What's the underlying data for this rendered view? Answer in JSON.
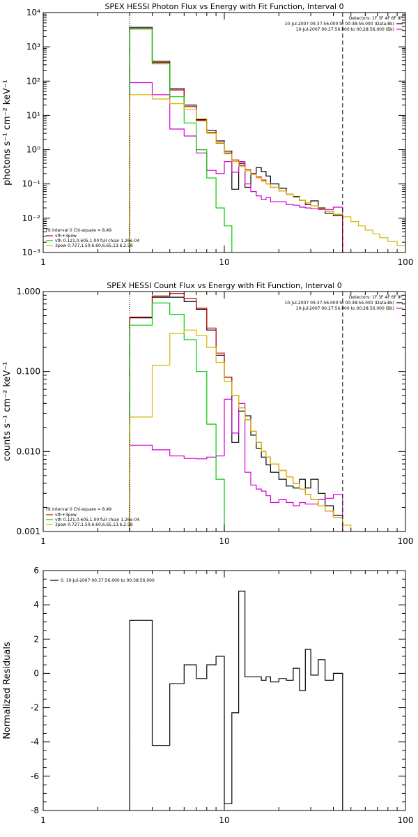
{
  "colors": {
    "black": "#000000",
    "red": "#cc0000",
    "green": "#00cc00",
    "yellow": "#d4b800",
    "magenta": "#d000d0"
  },
  "chart_data": [
    {
      "type": "line",
      "title": "SPEX HESSI Photon Flux vs Energy with Fit Function, Interval 0",
      "ylabel": "photons s⁻¹ cm⁻² keV⁻¹",
      "xlabel": "",
      "x_scale": "log",
      "y_scale": "log",
      "xlim": [
        1,
        100
      ],
      "ylim": [
        0.001,
        10000
      ],
      "x_ticks": [
        "1",
        "10",
        "100"
      ],
      "y_ticks": [
        "10⁻³",
        "10⁻²",
        "10⁻¹",
        "10⁰",
        "10¹",
        "10²",
        "10³",
        "10⁴"
      ],
      "vlines": [
        {
          "x": 3.0,
          "style": "dotted"
        },
        {
          "x": 45.0,
          "style": "dashed"
        }
      ],
      "detectors_text": "Detectors: 1F 3F 4F 6F 9F",
      "time_labels": [
        {
          "text": "10-Jul-2007 00:37:56.000 to 00:38:56.000 (Data-Bk)",
          "color": "#000000"
        },
        {
          "text": "10-Jul-2007 00:27:56.000 to 00:28:56.000 (Bk)",
          "color": "#d000d0"
        }
      ],
      "fit_header": "Fit Interval 0   Chi-square = 8.49",
      "fit_legend": [
        {
          "name": "vth+3pow",
          "color": "#cc0000"
        },
        {
          "name": "vth 0.121,0.605,1.00  full chian 1.26e-04",
          "color": "#00cc00"
        },
        {
          "name": "3pow 0.727,1.50,6.60,6.65,13.6,2.58",
          "color": "#d4b800"
        }
      ],
      "series": [
        {
          "name": "Data-Bk",
          "color": "#000000",
          "edges": [
            3,
            4,
            5,
            6,
            7,
            8,
            9,
            10,
            11,
            12,
            13,
            14,
            15,
            16,
            17,
            18,
            20,
            22,
            24,
            26,
            28,
            30,
            33,
            36,
            40,
            45
          ],
          "values": [
            3700,
            380,
            60,
            20,
            7.5,
            3.6,
            1.8,
            0.9,
            0.07,
            0.4,
            0.08,
            0.2,
            0.3,
            0.23,
            0.17,
            0.1,
            0.075,
            0.05,
            0.043,
            0.033,
            0.025,
            0.032,
            0.02,
            0.014,
            0.012
          ]
        },
        {
          "name": "Bk",
          "color": "#d000d0",
          "edges": [
            3,
            4,
            5,
            6,
            7,
            8,
            9,
            10,
            11,
            12,
            13,
            14,
            15,
            16,
            17,
            18,
            20,
            22,
            24,
            26,
            28,
            30,
            33,
            36,
            40,
            45
          ],
          "values": [
            90,
            40,
            4,
            2.5,
            0.8,
            0.25,
            0.2,
            0.45,
            0.22,
            0.45,
            0.1,
            0.06,
            0.045,
            0.035,
            0.04,
            0.03,
            0.03,
            0.025,
            0.024,
            0.021,
            0.02,
            0.019,
            0.018,
            0.018,
            0.021
          ]
        },
        {
          "name": "vth+3pow",
          "color": "#cc0000",
          "edges": [
            3,
            4,
            5,
            6,
            7,
            8,
            9,
            10,
            11,
            12,
            13,
            14,
            15,
            16,
            17,
            18,
            20,
            22,
            24,
            26,
            28,
            30,
            33,
            36,
            40,
            45
          ],
          "values": [
            3400,
            350,
            55,
            18,
            7,
            3.2,
            1.55,
            0.8,
            0.5,
            0.35,
            0.26,
            0.2,
            0.16,
            0.13,
            0.1,
            0.08,
            0.063,
            0.05,
            0.041,
            0.033,
            0.028,
            0.023,
            0.019,
            0.016,
            0.013
          ]
        },
        {
          "name": "vth",
          "color": "#00cc00",
          "edges": [
            3,
            4,
            5,
            6,
            7,
            8,
            9,
            10,
            11
          ],
          "values": [
            3300,
            320,
            35,
            6,
            1,
            0.15,
            0.02,
            0.006
          ]
        },
        {
          "name": "3pow",
          "color": "#d4b800",
          "edges": [
            3,
            4,
            5,
            6,
            7,
            8,
            9,
            10,
            11,
            12,
            13,
            14,
            15,
            16,
            17,
            18,
            20,
            22,
            24,
            26,
            28,
            30,
            33,
            36,
            40,
            45,
            50,
            55,
            60,
            66,
            72,
            80,
            90,
            100
          ],
          "values": [
            40,
            30,
            22,
            15,
            8,
            3,
            1.6,
            0.75,
            0.45,
            0.32,
            0.24,
            0.19,
            0.15,
            0.12,
            0.1,
            0.08,
            0.063,
            0.05,
            0.041,
            0.033,
            0.028,
            0.023,
            0.019,
            0.016,
            0.013,
            0.011,
            0.008,
            0.006,
            0.0045,
            0.0035,
            0.0027,
            0.0021,
            0.0016
          ]
        }
      ]
    },
    {
      "type": "line",
      "title": "SPEX HESSI Count Flux vs Energy with Fit Function, Interval 0",
      "ylabel": "counts s⁻¹ cm⁻² keV⁻¹",
      "xlabel": "",
      "x_scale": "log",
      "y_scale": "log",
      "xlim": [
        1,
        100
      ],
      "ylim": [
        0.001,
        1.0
      ],
      "x_ticks": [
        "1",
        "10",
        "100"
      ],
      "y_ticks": [
        "0.001",
        "0.010",
        "0.100",
        "1.000"
      ],
      "vlines": [
        {
          "x": 3.0,
          "style": "dotted"
        },
        {
          "x": 45.0,
          "style": "dashed"
        }
      ],
      "detectors_text": "Detectors: 1F 3F 4F 6F 9F",
      "time_labels": [
        {
          "text": "10-Jul-2007 00:37:56.000 to 00:38:56.000 (Data-Bk)",
          "color": "#000000"
        },
        {
          "text": "10-Jul-2007 00:27:56.000 to 00:28:56.000 (Bk)",
          "color": "#d000d0"
        }
      ],
      "fit_header": "Fit Interval 0   Chi-square = 8.49",
      "fit_legend": [
        {
          "name": "vth+3pow",
          "color": "#cc0000"
        },
        {
          "name": "vth 0.121,0.605,1.00  full chian 1.26e-04",
          "color": "#00cc00"
        },
        {
          "name": "3pow 0.727,1.50,6.60,6.65,13.6,2.58",
          "color": "#d4b800"
        }
      ],
      "series": [
        {
          "name": "Data-Bk",
          "color": "#000000",
          "edges": [
            3,
            4,
            5,
            6,
            7,
            8,
            9,
            10,
            11,
            12,
            13,
            14,
            15,
            16,
            17,
            18,
            20,
            22,
            24,
            26,
            28,
            30,
            33,
            36,
            40,
            45
          ],
          "values": [
            0.47,
            0.85,
            0.85,
            0.75,
            0.6,
            0.33,
            0.16,
            0.085,
            0.013,
            0.032,
            0.028,
            0.016,
            0.011,
            0.0085,
            0.0068,
            0.0055,
            0.0045,
            0.0037,
            0.0035,
            0.0045,
            0.0035,
            0.0045,
            0.003,
            0.0021,
            0.0016
          ]
        },
        {
          "name": "Bk",
          "color": "#d000d0",
          "edges": [
            3,
            4,
            5,
            6,
            7,
            8,
            9,
            10,
            11,
            12,
            13,
            14,
            15,
            16,
            17,
            18,
            20,
            22,
            24,
            26,
            28,
            30,
            33,
            36,
            40,
            45
          ],
          "values": [
            0.012,
            0.0105,
            0.0088,
            0.0082,
            0.0081,
            0.0085,
            0.0088,
            0.045,
            0.017,
            0.04,
            0.0055,
            0.0038,
            0.0034,
            0.0032,
            0.0028,
            0.0023,
            0.0025,
            0.0023,
            0.0021,
            0.0023,
            0.0022,
            0.0022,
            0.0025,
            0.0026,
            0.0029
          ]
        },
        {
          "name": "vth+3pow",
          "color": "#cc0000",
          "edges": [
            3,
            4,
            5,
            6,
            7,
            8,
            9,
            10,
            11,
            12,
            13,
            14,
            15,
            16,
            17,
            18,
            20,
            22,
            24,
            26,
            28,
            30,
            33,
            36,
            40,
            45
          ],
          "values": [
            0.48,
            0.88,
            0.95,
            0.82,
            0.62,
            0.35,
            0.17,
            0.085,
            0.05,
            0.035,
            0.025,
            0.018,
            0.013,
            0.01,
            0.0085,
            0.007,
            0.0058,
            0.0048,
            0.004,
            0.0034,
            0.0029,
            0.0025,
            0.0021,
            0.0018,
            0.0015
          ]
        },
        {
          "name": "vth",
          "color": "#00cc00",
          "edges": [
            3,
            4,
            5,
            6,
            7,
            8,
            9,
            10
          ],
          "values": [
            0.38,
            0.72,
            0.52,
            0.25,
            0.1,
            0.022,
            0.0045
          ]
        },
        {
          "name": "3pow",
          "color": "#d4b800",
          "edges": [
            3,
            4,
            5,
            6,
            7,
            8,
            9,
            10,
            11,
            12,
            13,
            14,
            15,
            16,
            17,
            18,
            20,
            22,
            24,
            26,
            28,
            30,
            33,
            36,
            40,
            45,
            50,
            55
          ],
          "values": [
            0.027,
            0.12,
            0.3,
            0.33,
            0.28,
            0.2,
            0.13,
            0.075,
            0.05,
            0.035,
            0.025,
            0.018,
            0.013,
            0.01,
            0.0085,
            0.007,
            0.0058,
            0.0048,
            0.004,
            0.0034,
            0.0029,
            0.0025,
            0.0021,
            0.0018,
            0.0015,
            0.0012,
            0.001
          ]
        }
      ]
    },
    {
      "type": "line",
      "title": "",
      "ylabel": "Normalized Residuals",
      "xlabel": "",
      "x_scale": "log",
      "y_scale": "linear",
      "xlim": [
        1,
        100
      ],
      "ylim": [
        -8,
        6
      ],
      "x_ticks": [
        "1",
        "10",
        "100"
      ],
      "y_ticks": [
        "-8",
        "-6",
        "-4",
        "-2",
        "0",
        "2",
        "4",
        "6"
      ],
      "legend_label": "0. 10-Jul-2007 00:37:56.000 to 00:38:56.000",
      "series": [
        {
          "name": "residuals",
          "color": "#000000",
          "edges": [
            3,
            4,
            5,
            6,
            7,
            8,
            9,
            10,
            11,
            12,
            13,
            14,
            15,
            16,
            17,
            18,
            20,
            22,
            24,
            26,
            28,
            30,
            33,
            36,
            40,
            45
          ],
          "values": [
            3.1,
            -4.2,
            -0.6,
            0.5,
            -0.3,
            0.5,
            1.0,
            -7.6,
            -2.3,
            4.8,
            -0.2,
            -0.2,
            -0.2,
            -0.4,
            -0.2,
            -0.5,
            -0.3,
            -0.4,
            0.3,
            -1.0,
            1.4,
            -0.1,
            0.8,
            -0.4,
            0.0
          ]
        }
      ]
    }
  ]
}
